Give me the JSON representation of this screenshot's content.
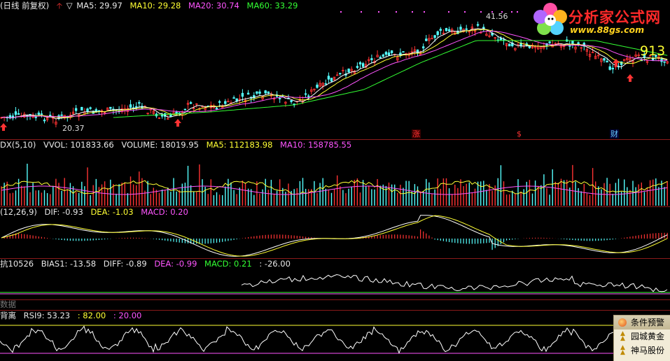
{
  "main_panel": {
    "header": [
      {
        "text": "(日线 前复权)",
        "color": "#e8e8e8"
      },
      {
        "text": "MA5: 29.97",
        "color": "#e8e8e8"
      },
      {
        "text": "MA10: 29.28",
        "color": "#ffff33"
      },
      {
        "text": "MA20: 30.74",
        "color": "#ff55ff"
      },
      {
        "text": "MA60: 33.29",
        "color": "#33ff33"
      }
    ],
    "high_label": "41.56",
    "low_label": "20.37",
    "right_value": "913",
    "event_badges": [
      {
        "text": "涨",
        "color": "#ff3333",
        "bg": "#3a0000"
      },
      {
        "text": "$",
        "color": "#ff3333",
        "bg": "#000000"
      },
      {
        "text": "财",
        "color": "#66ccff",
        "bg": "#000033"
      }
    ]
  },
  "volume_panel": {
    "header": [
      {
        "text": "DX(5,10)",
        "color": "#e8e8e8"
      },
      {
        "text": "VVOL: 101833.66",
        "color": "#e8e8e8"
      },
      {
        "text": "VOLUME: 18019.95",
        "color": "#e8e8e8"
      },
      {
        "text": "MA5: 112183.98",
        "color": "#ffff33"
      },
      {
        "text": "MA10: 158785.55",
        "color": "#ff55ff"
      }
    ]
  },
  "macd_panel": {
    "header": [
      {
        "text": "(12,26,9)",
        "color": "#e8e8e8"
      },
      {
        "text": "DIF: -0.93",
        "color": "#e8e8e8"
      },
      {
        "text": "DEA: -1.03",
        "color": "#ffff33"
      },
      {
        "text": "MACD: 0.20",
        "color": "#ff55ff"
      }
    ]
  },
  "bias_panel": {
    "header": [
      {
        "text": "抗10526",
        "color": "#e8e8e8"
      },
      {
        "text": "BIAS1: -13.58",
        "color": "#e8e8e8"
      },
      {
        "text": "DIFF: -0.89",
        "color": "#e8e8e8"
      },
      {
        "text": "DEA: -0.99",
        "color": "#ff55ff"
      },
      {
        "text": "MACD: 0.21",
        "color": "#33ff33"
      },
      {
        "text": ": -26.00",
        "color": "#e8e8e8"
      }
    ]
  },
  "data_panel": {
    "header": [
      {
        "text": "数据",
        "color": "#777777"
      }
    ]
  },
  "rsi_panel": {
    "header": [
      {
        "text": "背离",
        "color": "#e8e8e8"
      },
      {
        "text": "RSI9: 53.23",
        "color": "#e8e8e8"
      },
      {
        "text": ": 82.00",
        "color": "#ffff33"
      },
      {
        "text": ": 20.00",
        "color": "#ff55ff"
      }
    ]
  },
  "logo": {
    "title": "分析家公式网",
    "url": "www.88gs.com"
  },
  "alert_window": {
    "title": "条件预警",
    "items": [
      "园城黄金",
      "神马股份"
    ]
  },
  "colors": {
    "up": "#ff3333",
    "down": "#55ffff",
    "ma5": "#ffffff",
    "ma10": "#ffff33",
    "ma20": "#ff55ff",
    "ma60": "#33ff33",
    "separator": "#8a1a1a"
  }
}
